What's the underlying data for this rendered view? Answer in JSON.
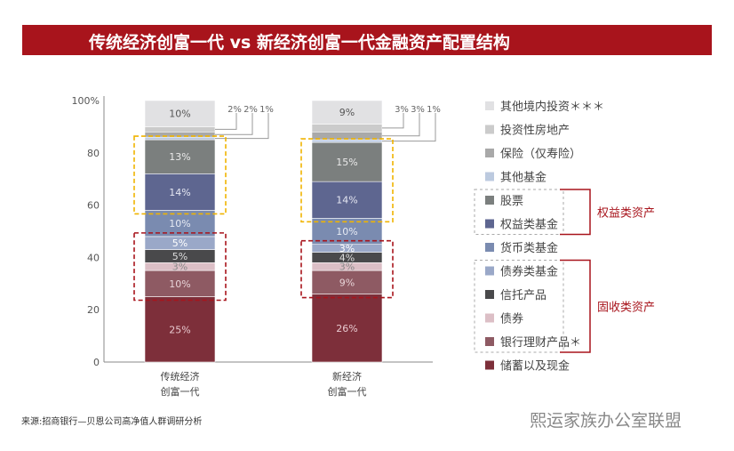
{
  "title": "传统经济创富一代 vs 新经济创富一代金融资产配置结构",
  "source": "来源:招商银行—贝恩公司高净值人群调研分析",
  "watermark": "熙运家族办公室联盟",
  "chart_data": {
    "type": "bar",
    "stacked": true,
    "categories": [
      "传统经济\n创富一代",
      "新经济\n创富一代"
    ],
    "category_lines": [
      [
        "传统经济",
        "创富一代"
      ],
      [
        "新经济",
        "创富一代"
      ]
    ],
    "ylim": [
      0,
      100
    ],
    "yticks": [
      "0",
      "20",
      "40",
      "60",
      "80",
      "100%"
    ],
    "ytick_values": [
      0,
      20,
      40,
      60,
      80,
      100
    ],
    "grid": false,
    "legend_position": "right",
    "series": [
      {
        "name": "储蓄以及现金",
        "values": [
          25,
          26
        ],
        "color": "#7d2f3a",
        "label_color": "#e8c9cf"
      },
      {
        "name": "银行理财产品＊",
        "values": [
          10,
          9
        ],
        "color": "#8e5a63",
        "label_color": "#e8d4d8"
      },
      {
        "name": "债券",
        "values": [
          3,
          3
        ],
        "color": "#dcbfc6",
        "label_color": "#888"
      },
      {
        "name": "信托产品",
        "values": [
          5,
          4
        ],
        "color": "#49494b",
        "label_color": "#ddd"
      },
      {
        "name": "债券类基金",
        "values": [
          5,
          3
        ],
        "color": "#9aa8c8",
        "label_color": "#fff"
      },
      {
        "name": "货币类基金",
        "values": [
          10,
          10
        ],
        "color": "#7a8bb0",
        "label_color": "#e6eaf3"
      },
      {
        "name": "权益类基金",
        "values": [
          14,
          14
        ],
        "color": "#5e6690",
        "label_color": "#e6e8f3"
      },
      {
        "name": "股票",
        "values": [
          13,
          15
        ],
        "color": "#7b7f7e",
        "label_color": "#eaeaea"
      },
      {
        "name": "其他基金",
        "values": [
          1,
          1
        ],
        "color": "#bccadf",
        "label_color": null
      },
      {
        "name": "保险（仅寿险）",
        "values": [
          2,
          3
        ],
        "color": "#a9a9a9",
        "label_color": null
      },
      {
        "name": "投资性房地产",
        "values": [
          2,
          3
        ],
        "color": "#cbcbcb",
        "label_color": null
      },
      {
        "name": "其他境内投资＊＊＊",
        "values": [
          10,
          9
        ],
        "color": "#e1e1e3",
        "label_color": "#555"
      }
    ],
    "outside_labels": [
      [
        "2%",
        "2%",
        "1%"
      ],
      [
        "3%",
        "3%",
        "1%"
      ]
    ],
    "groups": [
      {
        "name": "权益类资产",
        "members": [
          "股票",
          "权益类基金"
        ],
        "box_color": "#f0b400"
      },
      {
        "name": "固收类资产",
        "members": [
          "债券类基金",
          "信托产品",
          "债券",
          "银行理财产品＊"
        ],
        "box_color": "#a8141c"
      }
    ]
  }
}
